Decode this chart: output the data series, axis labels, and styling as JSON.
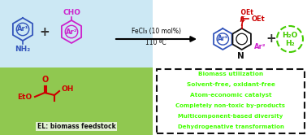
{
  "bg_color": "#ffffff",
  "top_left_bg": "#cce8f4",
  "bottom_left_bg": "#90c850",
  "reagent1_color": "#3355bb",
  "reagent2_color": "#cc22cc",
  "product_ring_color": "#3355bb",
  "product_ar2_color": "#cc22cc",
  "product_ester_color": "#cc0000",
  "byproduct_color": "#44cc00",
  "el_color": "#cc0000",
  "box_lines": [
    "Biomass utilization",
    "Solvent-free, oxidant-free",
    "Atom-economic catalyst",
    "Completely non-toxic by-products",
    "Multicomponent-based diversity",
    "Dehydrogenative transformation"
  ],
  "box_text_color": "#44ff00",
  "box_bg": "#ffffff",
  "box_border": "#111111"
}
